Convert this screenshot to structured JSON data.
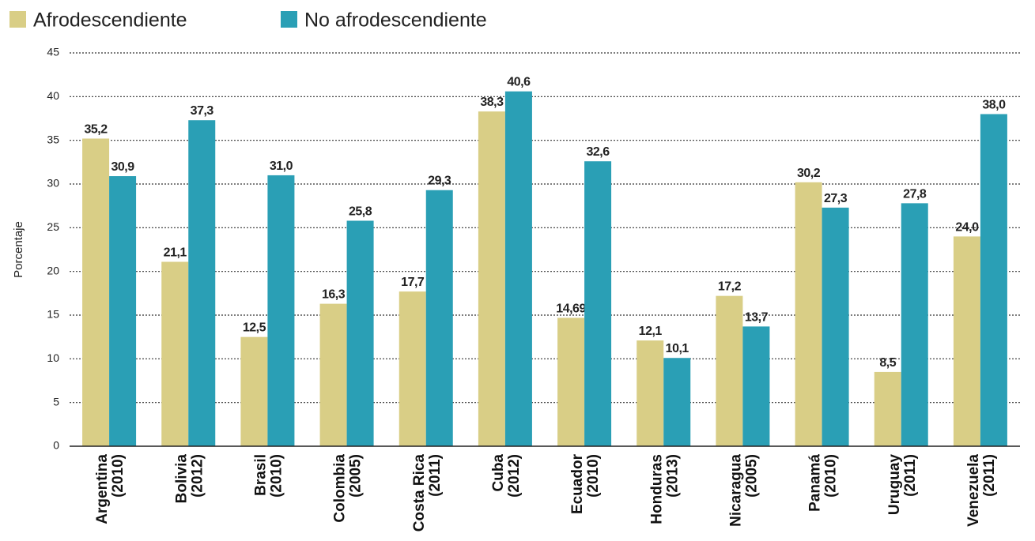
{
  "chart_data": {
    "type": "bar",
    "y_label": "Porcentaje",
    "categories": [
      "Argentina\n(2010)",
      "Bolivia\n(2012)",
      "Brasil\n(2010)",
      "Colombia\n(2005)",
      "Costa Rica\n(2011)",
      "Cuba\n(2012)",
      "Ecuador\n(2010)",
      "Honduras\n(2013)",
      "Nicaragua\n(2005)",
      "Panamá\n(2010)",
      "Uruguay\n(2011)",
      "Venezuela\n(2011)"
    ],
    "series": [
      {
        "name": "Afrodescendiente",
        "color": "#d9ce86",
        "values": [
          35.2,
          21.1,
          12.5,
          16.3,
          17.7,
          38.3,
          14.69,
          12.1,
          17.2,
          30.2,
          8.5,
          24.0
        ],
        "value_labels": [
          "35,2",
          "21,1",
          "12,5",
          "16,3",
          "17,7",
          "38,3",
          "14,69",
          "12,1",
          "17,2",
          "30,2",
          "8,5",
          "24,0"
        ]
      },
      {
        "name": "No afrodescendiente",
        "color": "#2a9fb5",
        "values": [
          30.9,
          37.3,
          31.0,
          25.8,
          29.3,
          40.6,
          32.6,
          10.1,
          13.7,
          27.3,
          27.8,
          38.0
        ],
        "value_labels": [
          "30,9",
          "37,3",
          "31,0",
          "25,8",
          "29,3",
          "40,6",
          "32,6",
          "10,1",
          "13,7",
          "27,3",
          "27,8",
          "38,0"
        ]
      }
    ],
    "ylim": [
      0,
      45
    ],
    "yticks": [
      0,
      5,
      10,
      15,
      20,
      25,
      30,
      35,
      40,
      45
    ],
    "grid": true,
    "legend": "top-left"
  }
}
